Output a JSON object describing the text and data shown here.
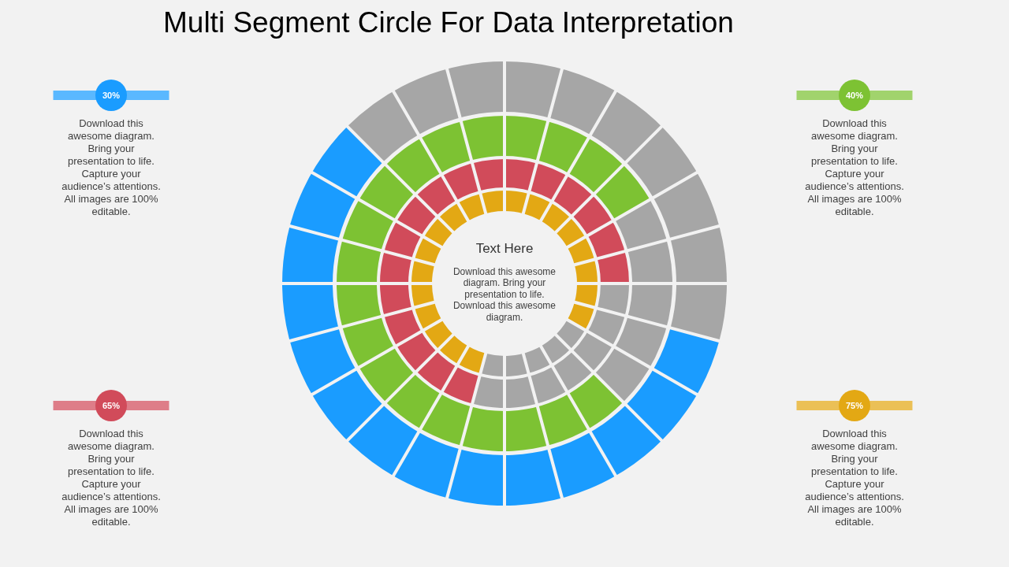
{
  "chart_data": {
    "type": "donut",
    "title": "Multi Segment Circle For Data Interpretation",
    "series": [
      {
        "color": "#1a9cff",
        "values": [
          29.17,
          58.33,
          12.5
        ],
        "colors": [
          "#a6a6a6",
          "#1a9cff",
          "#a6a6a6"
        ]
      },
      {
        "color": "#7dc233",
        "values": [
          16.67,
          20.83,
          62.5
        ],
        "colors": [
          "#7dc233",
          "#a6a6a6",
          "#7dc233"
        ]
      },
      {
        "color": "#d14b5a",
        "values": [
          25,
          29.17,
          45.83
        ],
        "colors": [
          "#d14b5a",
          "#a6a6a6",
          "#d14b5a"
        ]
      },
      {
        "color": "#e3a814",
        "values": [
          33.33,
          20.84,
          45.83
        ],
        "colors": [
          "#e3a814",
          "#a6a6a6",
          "#e3a814"
        ]
      }
    ],
    "annotations": [
      "30%",
      "Download this awesome diagram. Bring your presentation to life. Capture your audience’s attentions. All images are 100% editable.",
      "40%",
      "Download this awesome diagram. Bring your presentation to life. Capture your audience’s attentions. All images are 100% editable.",
      "65%",
      "Download this awesome diagram. Bring your presentation to life. Capture your audience’s attentions. All images are 100% editable.",
      "75%",
      "Download this awesome diagram. Bring your presentation to life. Capture your audience’s attentions. All images are 100% editable.",
      "Text Here",
      "Download this awesome diagram. Bring your presentation to life. Download this awesome diagram."
    ]
  }
}
